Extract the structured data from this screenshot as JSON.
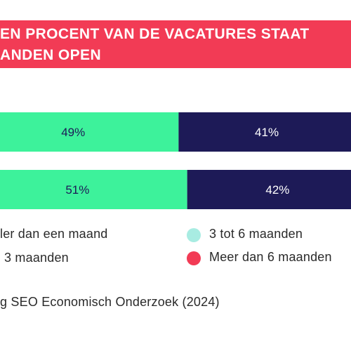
{
  "header": {
    "title_line1": "EN PROCENT VAN DE VACATURES STAAT",
    "title_line2": "ANDEN OPEN"
  },
  "legend": {
    "items": [
      {
        "label": "ler dan een maand",
        "color": "#3df29b"
      },
      {
        "label": "3 maanden",
        "color": "#1d1a57"
      },
      {
        "label": "3 tot 6 maanden",
        "color": "#a8ece2"
      },
      {
        "label": "Meer dan 6 maanden",
        "color": "#f23b55"
      }
    ]
  },
  "source": "g SEO Economisch Onderzoek (2024)",
  "chart_data": {
    "type": "bar",
    "orientation": "horizontal",
    "stacked": true,
    "unit": "%",
    "series": [
      {
        "values": [
          49,
          51
        ],
        "color": "#3df29b"
      },
      {
        "values": [
          41,
          42
        ],
        "color": "#1d1a57"
      }
    ]
  }
}
